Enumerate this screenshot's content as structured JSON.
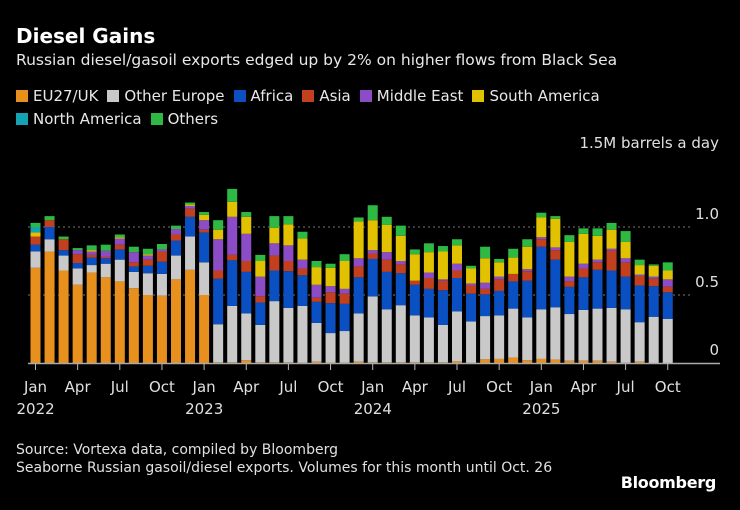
{
  "chart_data": {
    "type": "bar",
    "stacked": true,
    "title": "Diesel Gains",
    "subtitle": "Russian diesel/gasoil exports edged up by 2% on higher flows from Black Sea",
    "unit_label": "1.5M barrels a day",
    "ylim": [
      0,
      1.5
    ],
    "yticks": [
      {
        "value": 0,
        "label": "0"
      },
      {
        "value": 0.5,
        "label": "0.5"
      },
      {
        "value": 1.0,
        "label": "1.0"
      },
      {
        "value": 1.5,
        "label": "1.5M barrels a day"
      }
    ],
    "grid": true,
    "legend_position": "top",
    "x": [
      "2022-01",
      "2022-02",
      "2022-03",
      "2022-04",
      "2022-05",
      "2022-06",
      "2022-07",
      "2022-08",
      "2022-09",
      "2022-10",
      "2022-11",
      "2022-12",
      "2023-01",
      "2023-02",
      "2023-03",
      "2023-04",
      "2023-05",
      "2023-06",
      "2023-07",
      "2023-08",
      "2023-09",
      "2023-10",
      "2023-11",
      "2023-12",
      "2024-01",
      "2024-02",
      "2024-03",
      "2024-04",
      "2024-05",
      "2024-06",
      "2024-07",
      "2024-08",
      "2024-09",
      "2024-10",
      "2024-11",
      "2024-12",
      "2025-01",
      "2025-02",
      "2025-03",
      "2025-04",
      "2025-05",
      "2025-06",
      "2025-07",
      "2025-08",
      "2025-09",
      "2025-10"
    ],
    "xticks": [
      {
        "index": 0,
        "label": "Jan",
        "year": "2022"
      },
      {
        "index": 3,
        "label": "Apr"
      },
      {
        "index": 6,
        "label": "Jul"
      },
      {
        "index": 9,
        "label": "Oct"
      },
      {
        "index": 12,
        "label": "Jan",
        "year": "2023"
      },
      {
        "index": 15,
        "label": "Apr"
      },
      {
        "index": 18,
        "label": "Jul"
      },
      {
        "index": 21,
        "label": "Oct"
      },
      {
        "index": 24,
        "label": "Jan",
        "year": "2024"
      },
      {
        "index": 27,
        "label": "Apr"
      },
      {
        "index": 30,
        "label": "Jul"
      },
      {
        "index": 33,
        "label": "Oct"
      },
      {
        "index": 36,
        "label": "Jan",
        "year": "2025"
      },
      {
        "index": 39,
        "label": "Apr"
      },
      {
        "index": 42,
        "label": "Jul"
      },
      {
        "index": 45,
        "label": "Oct"
      }
    ],
    "series": [
      {
        "name": "EU27/UK",
        "color": "#e8901e",
        "values": [
          0.7,
          0.82,
          0.68,
          0.575,
          0.665,
          0.63,
          0.6,
          0.55,
          0.5,
          0.495,
          0.615,
          0.685,
          0.5,
          0.005,
          0.005,
          0.02,
          0.005,
          0.005,
          0.005,
          0.003,
          0.01,
          0.003,
          0.003,
          0.01,
          0.005,
          0.005,
          0.005,
          0.005,
          0.005,
          0.005,
          0.012,
          0.003,
          0.027,
          0.03,
          0.04,
          0.02,
          0.03,
          0.025,
          0.017,
          0.017,
          0.017,
          0.01,
          0.003,
          0.01,
          0,
          0
        ]
      },
      {
        "name": "Other Europe",
        "color": "#c9c9c9",
        "values": [
          0.12,
          0.09,
          0.11,
          0.12,
          0.055,
          0.1,
          0.16,
          0.12,
          0.16,
          0.16,
          0.175,
          0.245,
          0.24,
          0.28,
          0.415,
          0.345,
          0.275,
          0.45,
          0.4,
          0.417,
          0.285,
          0.217,
          0.232,
          0.355,
          0.485,
          0.39,
          0.42,
          0.345,
          0.33,
          0.275,
          0.368,
          0.302,
          0.318,
          0.32,
          0.36,
          0.315,
          0.365,
          0.385,
          0.343,
          0.373,
          0.383,
          0.395,
          0.392,
          0.29,
          0.34,
          0.325
        ]
      },
      {
        "name": "Africa",
        "color": "#0a50c2",
        "values": [
          0.05,
          0.09,
          0.04,
          0.04,
          0.055,
          0.04,
          0.075,
          0.04,
          0.055,
          0.09,
          0.11,
          0.145,
          0.22,
          0.335,
          0.335,
          0.305,
          0.165,
          0.225,
          0.27,
          0.225,
          0.155,
          0.22,
          0.2,
          0.265,
          0.275,
          0.275,
          0.235,
          0.225,
          0.21,
          0.255,
          0.245,
          0.205,
          0.16,
          0.18,
          0.2,
          0.27,
          0.46,
          0.35,
          0.2,
          0.24,
          0.285,
          0.275,
          0.24,
          0.27,
          0.225,
          0.195
        ]
      },
      {
        "name": "Asia",
        "color": "#c2401e",
        "values": [
          0.06,
          0.05,
          0.08,
          0.065,
          0.02,
          0.01,
          0.035,
          0.03,
          0.045,
          0.075,
          0.045,
          0.06,
          0.02,
          0.06,
          0.04,
          0.08,
          0.045,
          0.11,
          0.075,
          0.05,
          0.03,
          0.08,
          0.075,
          0.08,
          0.04,
          0.09,
          0.065,
          0.03,
          0.08,
          0.07,
          0.055,
          0.06,
          0.04,
          0.085,
          0.055,
          0.07,
          0.055,
          0.07,
          0.04,
          0.065,
          0.055,
          0.145,
          0.105,
          0.07,
          0.055,
          0.04
        ]
      },
      {
        "name": "Middle East",
        "color": "#8b4cc6",
        "values": [
          0,
          0,
          0,
          0.03,
          0.025,
          0.045,
          0.045,
          0.075,
          0.03,
          0.015,
          0.04,
          0.02,
          0.07,
          0.23,
          0.28,
          0.2,
          0.145,
          0.09,
          0.115,
          0.065,
          0.095,
          0.045,
          0.035,
          0.06,
          0.025,
          0.055,
          0.025,
          0,
          0.04,
          0.01,
          0.05,
          0.015,
          0.045,
          0.02,
          0,
          0.015,
          0.015,
          0.02,
          0.035,
          0.035,
          0.02,
          0.015,
          0.03,
          0.01,
          0.015,
          0.055
        ]
      },
      {
        "name": "South America",
        "color": "#e2c200",
        "values": [
          0.03,
          0,
          0,
          0,
          0.01,
          0,
          0.01,
          0,
          0.01,
          0,
          0,
          0.01,
          0.04,
          0.07,
          0.11,
          0.125,
          0.115,
          0.115,
          0.155,
          0.155,
          0.13,
          0.135,
          0.205,
          0.27,
          0.22,
          0.2,
          0.185,
          0.195,
          0.15,
          0.205,
          0.135,
          0.11,
          0.18,
          0.105,
          0.12,
          0.165,
          0.145,
          0.21,
          0.255,
          0.22,
          0.175,
          0.14,
          0.12,
          0.07,
          0.08,
          0.065
        ]
      },
      {
        "name": "North America",
        "color": "#14a3b3",
        "values": [
          0.04,
          0,
          0,
          0,
          0,
          0,
          0,
          0,
          0,
          0,
          0,
          0,
          0,
          0,
          0,
          0,
          0,
          0,
          0,
          0,
          0,
          0,
          0,
          0,
          0,
          0,
          0,
          0,
          0,
          0,
          0,
          0,
          0,
          0,
          0,
          0,
          0,
          0,
          0,
          0,
          0,
          0,
          0,
          0,
          0,
          0
        ]
      },
      {
        "name": "Others",
        "color": "#2db944",
        "values": [
          0.03,
          0.03,
          0.02,
          0.015,
          0.035,
          0.045,
          0.02,
          0.04,
          0.04,
          0.04,
          0.025,
          0.015,
          0.02,
          0.07,
          0.095,
          0.035,
          0.045,
          0.085,
          0.06,
          0.05,
          0.045,
          0.03,
          0.05,
          0.03,
          0.11,
          0.06,
          0.075,
          0.035,
          0.065,
          0.04,
          0.045,
          0.02,
          0.085,
          0.025,
          0.065,
          0.055,
          0.035,
          0.02,
          0.05,
          0.04,
          0.055,
          0.05,
          0.08,
          0.04,
          0.01,
          0.06
        ]
      }
    ]
  },
  "footer": {
    "source": "Source: Vortexa data, compiled by Bloomberg",
    "note": "Seaborne Russian gasoil/diesel exports. Volumes for this month until Oct. 26",
    "logo": "Bloomberg"
  }
}
